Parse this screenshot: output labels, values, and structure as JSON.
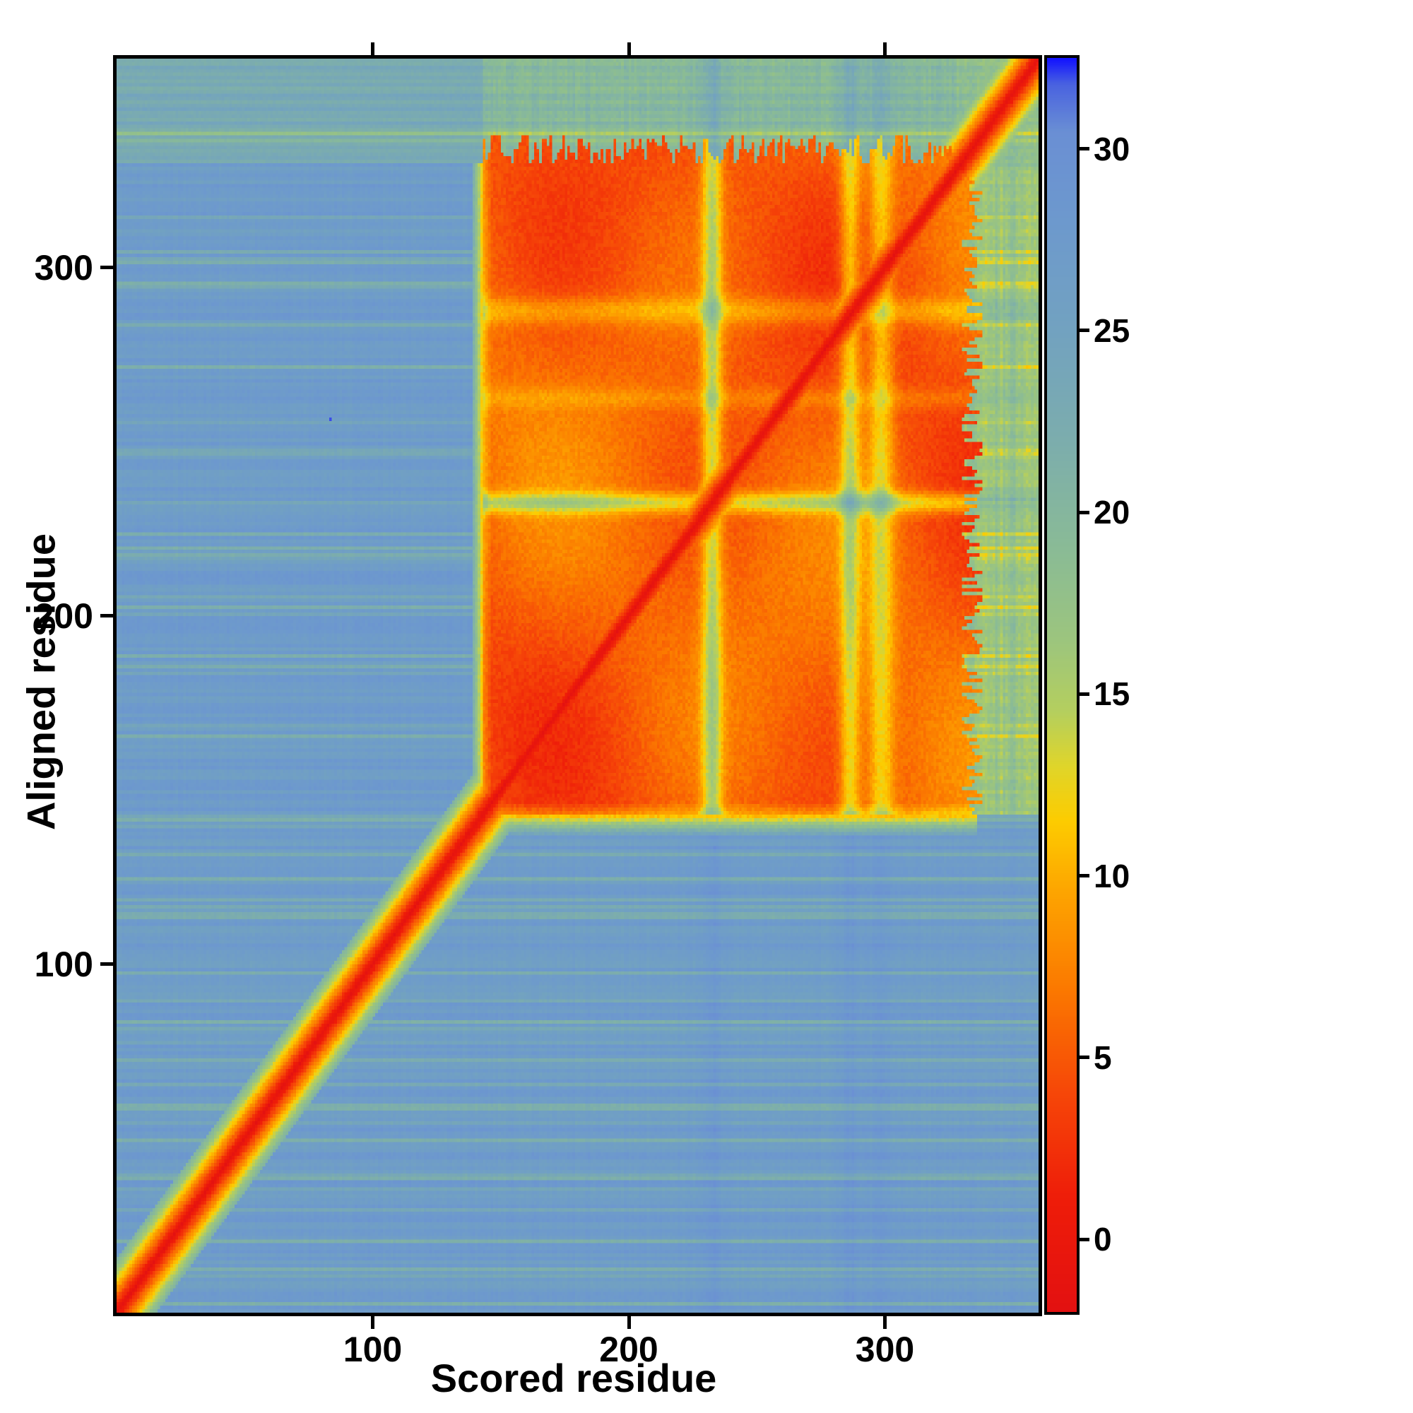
{
  "figure": {
    "background_color": "#ffffff",
    "frame_color": "#000000"
  },
  "chart_data": {
    "type": "heatmap",
    "title": "",
    "xlabel": "Scored residue",
    "ylabel": "Aligned residue",
    "x_range": [
      0,
      360
    ],
    "y_range": [
      0,
      360
    ],
    "x_ticks": [
      100,
      200,
      300
    ],
    "y_ticks": [
      100,
      200,
      300
    ],
    "grid": false,
    "legend": "colorbar-right",
    "colorbar": {
      "position": "right",
      "ticks": [
        0,
        5,
        10,
        15,
        20,
        25,
        30
      ],
      "value_range": [
        -2,
        32.5
      ],
      "colormap_stops": [
        [
          -2,
          "#e31111"
        ],
        [
          1,
          "#ee1c09"
        ],
        [
          4,
          "#f64708"
        ],
        [
          7,
          "#fb7b00"
        ],
        [
          9.5,
          "#fda400"
        ],
        [
          11.5,
          "#fdcc00"
        ],
        [
          13,
          "#e0d52a"
        ],
        [
          14.5,
          "#b5cf5e"
        ],
        [
          16.5,
          "#9cc57e"
        ],
        [
          19,
          "#8abb96"
        ],
        [
          22,
          "#7cadad"
        ],
        [
          25,
          "#72a2c0"
        ],
        [
          28,
          "#6d99cd"
        ],
        [
          30.5,
          "#6a8fd4"
        ],
        [
          31.8,
          "#4a63e0"
        ],
        [
          32.5,
          "#1414ff"
        ]
      ]
    },
    "matrix_model": {
      "description": "Pairwise alignment-error style matrix (360x360 residues). Low (red) values along the full diagonal and inside the residue ~145-330 square block; high (steel blue) values elsewhere; green/teal values in the C-terminal tail region (~330-360) and in bands flanking the block; pale yellow-green stripes cross the block near residues 232 and 285-300.",
      "size": 360,
      "domain_split": 143,
      "block_end": 330,
      "diagonal_value": -2,
      "diagonal_slope": 1.45,
      "diagonal_halfwidth": 16,
      "block_value": 4.5,
      "background_value": 26.5,
      "tail_value": 17.5,
      "upper_left_band_value": 22.5,
      "upper_band_value": 19,
      "right_band_value": 16,
      "ragged_edge_max": 9,
      "pale_stripes_x": [
        {
          "center": 232,
          "width": 4,
          "lift": 9
        },
        {
          "center": 286,
          "width": 4,
          "lift": 8
        },
        {
          "center": 298,
          "width": 5,
          "lift": 7
        }
      ],
      "pale_stripes_y": [
        {
          "center": 232,
          "width": 3,
          "lift": 8
        },
        {
          "center": 262,
          "width": 3,
          "lift": 2.5
        },
        {
          "center": 287,
          "width": 4,
          "lift": 4.5
        }
      ],
      "outlier_points": [
        {
          "x": 83,
          "y": 256,
          "value": 32
        }
      ]
    }
  }
}
